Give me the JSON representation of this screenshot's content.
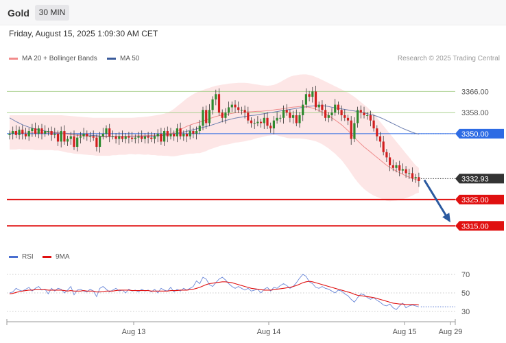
{
  "header": {
    "symbol": "Gold",
    "timeframe": "30 MIN"
  },
  "datetime": "Friday, August 15, 2025 1:09:30 AM CET",
  "legend": [
    {
      "label": "MA 20 + Bollinger Bands",
      "color": "#f28b8b"
    },
    {
      "label": "MA 50",
      "color": "#3a5a9a"
    }
  ],
  "credit": "Research © 2025 Trading Central",
  "rsi_legend": [
    {
      "label": "RSI",
      "color": "#4a6fd0"
    },
    {
      "label": "9MA",
      "color": "#e01010"
    }
  ],
  "chart_data": {
    "type": "candlestick",
    "y_range": [
      3307,
      3376
    ],
    "x_labels": [
      "Aug 13",
      "Aug 14",
      "Aug 15",
      "Aug 29"
    ],
    "last_price": "3332.93",
    "levels": [
      {
        "label": "3366.00",
        "value": 3366,
        "kind": "resistance"
      },
      {
        "label": "3358.00",
        "value": 3358,
        "kind": "resistance"
      },
      {
        "label": "3350.00",
        "value": 3350,
        "kind": "pivot"
      },
      {
        "label": "3325.00",
        "value": 3325,
        "kind": "support"
      },
      {
        "label": "3315.00",
        "value": 3315,
        "kind": "support"
      }
    ],
    "forecast_arrow": {
      "from": 3332.93,
      "to": 3315
    },
    "close_series": [
      3350,
      3351,
      3349.5,
      3351.5,
      3350,
      3349,
      3351,
      3352,
      3350,
      3352,
      3350,
      3351,
      3351,
      3349.5,
      3350,
      3347,
      3351,
      3347,
      3348,
      3349,
      3345,
      3348.5,
      3349,
      3350,
      3349,
      3349,
      3348.5,
      3345,
      3349,
      3350,
      3352,
      3349,
      3349,
      3348,
      3349,
      3348,
      3349,
      3348.5,
      3348,
      3348.5,
      3349,
      3348,
      3349,
      3348.5,
      3348,
      3349,
      3350,
      3347,
      3351,
      3349,
      3350,
      3349,
      3352,
      3349,
      3350,
      3349,
      3351,
      3350,
      3351,
      3353,
      3359,
      3354,
      3359,
      3363,
      3365,
      3358,
      3356,
      3358,
      3360,
      3361,
      3360,
      3359,
      3359,
      3358,
      3355,
      3354,
      3354,
      3354.5,
      3354,
      3356,
      3353,
      3352,
      3355,
      3356,
      3356,
      3359,
      3358,
      3356,
      3357,
      3354,
      3357,
      3361,
      3365,
      3364,
      3366,
      3360,
      3361,
      3359,
      3356,
      3357,
      3358,
      3361,
      3359,
      3357,
      3356,
      3355,
      3348,
      3354,
      3359,
      3358,
      3357,
      3357,
      3355,
      3352,
      3349,
      3347,
      3343,
      3341,
      3338,
      3337,
      3338,
      3336,
      3336.5,
      3335,
      3335,
      3333,
      3333.5,
      3332
    ],
    "ma20": [
      3350.5,
      3350.5,
      3350.5,
      3350.6,
      3350.5,
      3350.5,
      3350.5,
      3350.5,
      3350.4,
      3350.4,
      3350.4,
      3350.4,
      3350.4,
      3350.4,
      3350.3,
      3350.3,
      3350.2,
      3350.0,
      3349.8,
      3349.7,
      3349.5,
      3349.4,
      3349.3,
      3349.2,
      3349.1,
      3349.0,
      3348.9,
      3348.8,
      3348.8,
      3348.8,
      3348.8,
      3348.8,
      3348.9,
      3348.9,
      3349.0,
      3349.0,
      3349.0,
      3349.1,
      3349.1,
      3349.1,
      3349.2,
      3349.2,
      3349.2,
      3349.3,
      3349.3,
      3349.4,
      3349.4,
      3349.5,
      3349.6,
      3349.8,
      3350.0,
      3350.4,
      3351.0,
      3351.6,
      3352.2,
      3352.8,
      3353.3,
      3353.7,
      3354.1,
      3354.4,
      3354.8,
      3355.2,
      3355.7,
      3356.1,
      3356.5,
      3356.8,
      3357.1,
      3357.3,
      3357.5,
      3357.7,
      3357.9,
      3358.0,
      3358.1,
      3358.2,
      3358.3,
      3358.3,
      3358.4,
      3358.5,
      3358.5,
      3358.6,
      3358.7,
      3358.8,
      3359.0,
      3359.2,
      3359.3,
      3359.5,
      3359.7,
      3359.9,
      3360.1,
      3360.2,
      3360.3,
      3360.3,
      3360.2,
      3360.0,
      3359.7,
      3359.3,
      3358.8,
      3358.2,
      3357.5,
      3356.8,
      3356.0,
      3355.2,
      3354.3,
      3353.4,
      3352.3,
      3351.2,
      3349.9,
      3348.6,
      3347.3,
      3346.1,
      3345.0,
      3344.0,
      3343.0,
      3342.0,
      3341.0,
      3340.0,
      3339.0,
      3338.0,
      3337.2,
      3336.5,
      3335.8,
      3335.2,
      3334.6,
      3334.0,
      3333.5,
      3333.0,
      3332.6,
      3332.3
    ],
    "ma50": [
      3356.0,
      3355.3,
      3354.6,
      3354.0,
      3353.4,
      3352.9,
      3352.5,
      3352.1,
      3351.8,
      3351.5,
      3351.2,
      3351.0,
      3350.8,
      3350.6,
      3350.5,
      3350.4,
      3350.3,
      3350.2,
      3350.1,
      3350.0,
      3349.9,
      3349.8,
      3349.7,
      3349.6,
      3349.5,
      3349.4,
      3349.3,
      3349.2,
      3349.1,
      3349.0,
      3349.0,
      3349.0,
      3349.0,
      3349.0,
      3349.0,
      3349.0,
      3349.0,
      3349.0,
      3349.0,
      3349.0,
      3349.0,
      3349.0,
      3349.0,
      3349.0,
      3349.0,
      3349.1,
      3349.2,
      3349.3,
      3349.4,
      3349.6,
      3349.8,
      3350.0,
      3350.2,
      3350.4,
      3350.6,
      3350.9,
      3351.2,
      3351.5,
      3351.8,
      3352.1,
      3352.4,
      3352.7,
      3353.0,
      3353.4,
      3353.8,
      3354.2,
      3354.6,
      3355.0,
      3355.3,
      3355.6,
      3355.9,
      3356.1,
      3356.3,
      3356.5,
      3356.7,
      3356.9,
      3357.0,
      3357.2,
      3357.4,
      3357.6,
      3357.8,
      3358.0,
      3358.2,
      3358.4,
      3358.6,
      3358.8,
      3359.0,
      3359.2,
      3359.4,
      3359.6,
      3359.8,
      3360.0,
      3360.2,
      3360.4,
      3360.5,
      3360.6,
      3360.6,
      3360.6,
      3360.5,
      3360.3,
      3360.0,
      3359.8,
      3359.6,
      3359.4,
      3359.2,
      3359.0,
      3358.8,
      3358.6,
      3358.4,
      3358.2,
      3357.9,
      3357.6,
      3357.3,
      3357.0,
      3356.6,
      3356.1,
      3355.6,
      3355.0,
      3354.4,
      3353.8,
      3353.2,
      3352.6,
      3352.0,
      3351.5,
      3351.0,
      3350.5,
      3350.1,
      3349.8
    ],
    "bb_upper": [
      3357.0,
      3357.0,
      3357.0,
      3357.0,
      3357.0,
      3357.0,
      3357.0,
      3357.0,
      3357.0,
      3357.0,
      3357.0,
      3357.0,
      3357.0,
      3357.0,
      3357.0,
      3357.0,
      3357.0,
      3356.9,
      3356.8,
      3356.7,
      3356.6,
      3356.5,
      3356.4,
      3356.3,
      3356.2,
      3356.1,
      3356.0,
      3356.0,
      3356.0,
      3356.0,
      3356.0,
      3356.0,
      3356.0,
      3356.0,
      3356.0,
      3356.0,
      3356.0,
      3356.0,
      3356.0,
      3356.1,
      3356.2,
      3356.3,
      3356.4,
      3356.5,
      3356.7,
      3356.9,
      3357.1,
      3357.3,
      3357.6,
      3358.0,
      3358.6,
      3359.4,
      3360.4,
      3361.4,
      3362.4,
      3363.4,
      3364.2,
      3365.0,
      3365.6,
      3366.2,
      3366.6,
      3367.0,
      3367.4,
      3367.8,
      3368.2,
      3368.4,
      3368.6,
      3368.8,
      3369.0,
      3369.1,
      3369.2,
      3369.3,
      3369.3,
      3369.3,
      3369.2,
      3369.0,
      3368.8,
      3368.6,
      3368.4,
      3368.3,
      3368.2,
      3368.3,
      3368.5,
      3369.0,
      3369.6,
      3370.3,
      3371.0,
      3371.6,
      3372.0,
      3372.2,
      3372.4,
      3372.5,
      3372.5,
      3372.3,
      3372.0,
      3371.5,
      3371.0,
      3370.4,
      3369.8,
      3369.2,
      3368.6,
      3368.0,
      3367.4,
      3366.8,
      3366.2,
      3365.6,
      3364.8,
      3364.0,
      3363.0,
      3362.0,
      3361.0,
      3360.0,
      3358.8,
      3357.5,
      3356.0,
      3354.5,
      3353.0,
      3351.5,
      3350.0,
      3348.5,
      3347.0,
      3345.5,
      3344.0,
      3342.5,
      3341.0,
      3339.5,
      3338.0,
      3337.0
    ],
    "bb_lower": [
      3344.0,
      3344.0,
      3344.0,
      3344.2,
      3344.0,
      3344.0,
      3344.0,
      3344.0,
      3343.8,
      3343.8,
      3343.8,
      3343.8,
      3343.8,
      3343.8,
      3343.6,
      3343.6,
      3343.4,
      3343.1,
      3342.8,
      3342.7,
      3342.4,
      3342.3,
      3342.2,
      3342.1,
      3342.0,
      3341.9,
      3341.8,
      3341.6,
      3341.6,
      3341.6,
      3341.6,
      3341.6,
      3341.8,
      3341.8,
      3342.0,
      3342.0,
      3342.0,
      3342.2,
      3342.2,
      3342.1,
      3342.2,
      3342.1,
      3342.0,
      3342.1,
      3341.9,
      3341.9,
      3341.7,
      3341.7,
      3341.6,
      3341.6,
      3341.4,
      3341.4,
      3341.6,
      3341.8,
      3342.0,
      3342.2,
      3342.4,
      3342.4,
      3342.6,
      3342.6,
      3343.0,
      3343.4,
      3344.0,
      3344.4,
      3344.8,
      3345.2,
      3345.6,
      3345.8,
      3346.0,
      3346.3,
      3346.6,
      3346.7,
      3346.9,
      3347.1,
      3347.4,
      3347.6,
      3348.0,
      3348.4,
      3348.6,
      3348.9,
      3349.2,
      3349.3,
      3349.5,
      3349.4,
      3349.0,
      3348.7,
      3348.4,
      3348.2,
      3348.2,
      3348.2,
      3348.2,
      3348.1,
      3347.9,
      3347.7,
      3347.4,
      3347.1,
      3346.6,
      3346.0,
      3345.2,
      3344.4,
      3343.4,
      3342.4,
      3341.2,
      3340.0,
      3338.4,
      3336.8,
      3335.0,
      3333.2,
      3331.6,
      3330.2,
      3329.0,
      3328.0,
      3327.2,
      3326.5,
      3326.0,
      3325.5,
      3325.0,
      3324.5,
      3324.4,
      3324.5,
      3324.6,
      3324.9,
      3325.2,
      3325.5,
      3326.0,
      3326.5,
      3327.2,
      3327.6
    ],
    "rsi": {
      "ticks": [
        "70",
        "50",
        "30"
      ],
      "y_range": [
        25,
        80
      ],
      "rsi_values": [
        50,
        51,
        55,
        53,
        52,
        54,
        56,
        52,
        55,
        57,
        53,
        54,
        49,
        55,
        52,
        55,
        54,
        50,
        53,
        57,
        48,
        53,
        54,
        52,
        51,
        54,
        52,
        46,
        55,
        57,
        54,
        51,
        53,
        55,
        52,
        53,
        50,
        54,
        52,
        53,
        51,
        54,
        52,
        53,
        51,
        54,
        50,
        55,
        53,
        52,
        56,
        51,
        54,
        52,
        55,
        53,
        55,
        57,
        63,
        60,
        67,
        65,
        59,
        57,
        61,
        65,
        67,
        64,
        60,
        57,
        55,
        57,
        55,
        53,
        55,
        52,
        53,
        54,
        50,
        54,
        56,
        52,
        56,
        55,
        58,
        60,
        58,
        55,
        57,
        61,
        66,
        70,
        68,
        62,
        60,
        56,
        55,
        57,
        55,
        54,
        52,
        50,
        53,
        52,
        49,
        47,
        43,
        40,
        45,
        49,
        48,
        45,
        43,
        45,
        42,
        40,
        37,
        36,
        38,
        34,
        32,
        36,
        39,
        34,
        36,
        37,
        36,
        35
      ],
      "ma9_values": [
        49,
        49.5,
        50.5,
        51.5,
        52,
        52.5,
        53,
        53,
        53.5,
        53.5,
        53.5,
        53.5,
        53,
        53,
        53,
        53,
        53,
        52.5,
        52,
        52.5,
        52,
        52,
        52,
        52.5,
        52,
        52,
        52,
        51,
        51,
        51.5,
        52,
        52,
        52,
        52.5,
        53,
        53,
        53,
        53,
        52.5,
        52.5,
        52.5,
        52.5,
        52.5,
        52.5,
        52,
        52,
        52,
        52,
        52,
        52,
        52.5,
        52.5,
        52.5,
        53,
        53,
        53,
        53.5,
        54,
        55,
        56,
        57.5,
        59,
        60,
        60.5,
        61,
        61.5,
        62,
        62,
        61.5,
        61,
        60,
        59,
        58,
        57,
        56,
        55,
        54.5,
        54,
        53.5,
        53,
        53,
        53,
        53.5,
        54,
        54.5,
        55,
        55.5,
        56,
        57,
        58,
        59.5,
        61,
        62,
        62.5,
        62,
        61,
        60,
        59,
        58,
        57,
        56,
        55,
        54,
        53,
        52,
        51,
        50,
        48.5,
        47.5,
        47,
        46.5,
        46,
        45.5,
        45,
        44,
        43,
        42,
        41,
        40,
        39,
        38.5,
        38,
        38,
        37.5,
        37.5,
        37.5,
        37.5,
        37
      ]
    }
  }
}
